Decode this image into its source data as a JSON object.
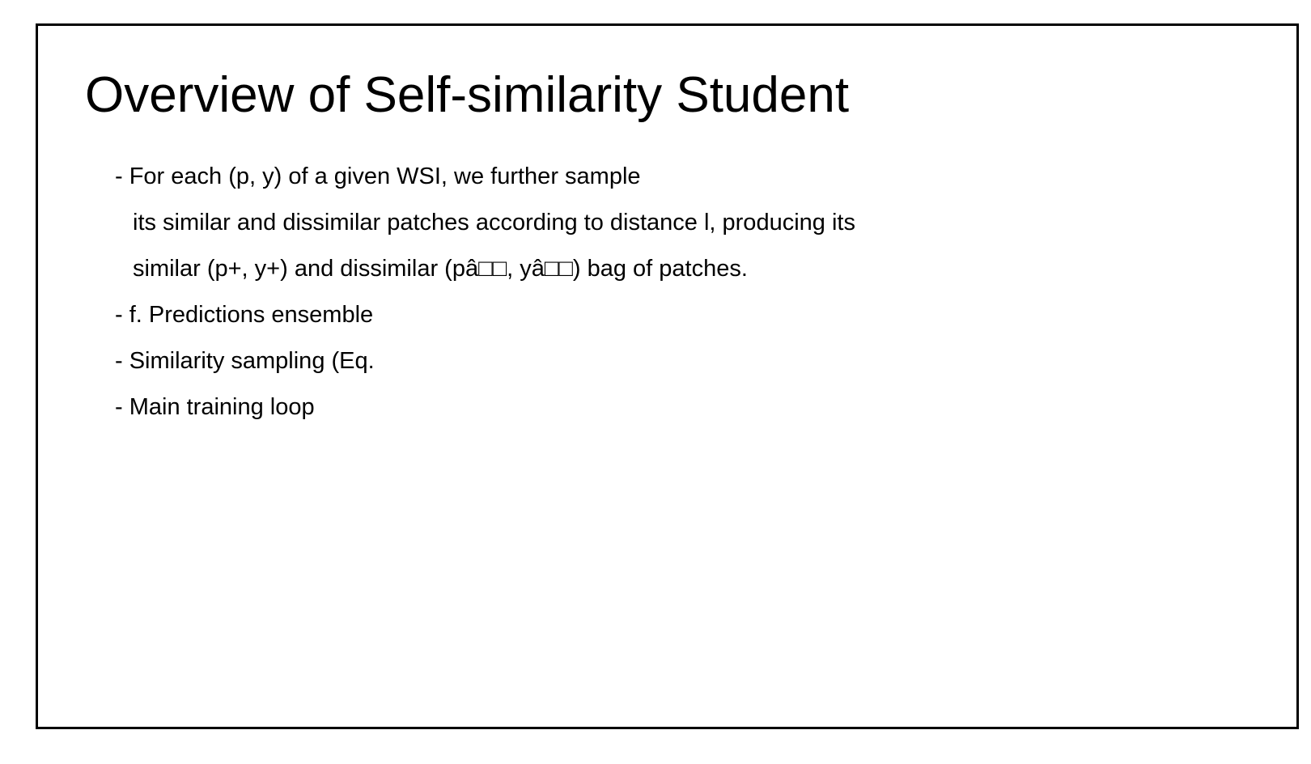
{
  "slide": {
    "title": "Overview of Self-similarity Student",
    "lines": [
      "- For each (p, y) of a given WSI, we further sample",
      "its similar and dissimilar patches according to distance l, producing its",
      "similar (p+, y+) and dissimilar (pâ□□, yâ□□) bag of patches.",
      "- f. Predictions ensemble",
      "- Similarity sampling (Eq.",
      "- Main training loop"
    ]
  }
}
